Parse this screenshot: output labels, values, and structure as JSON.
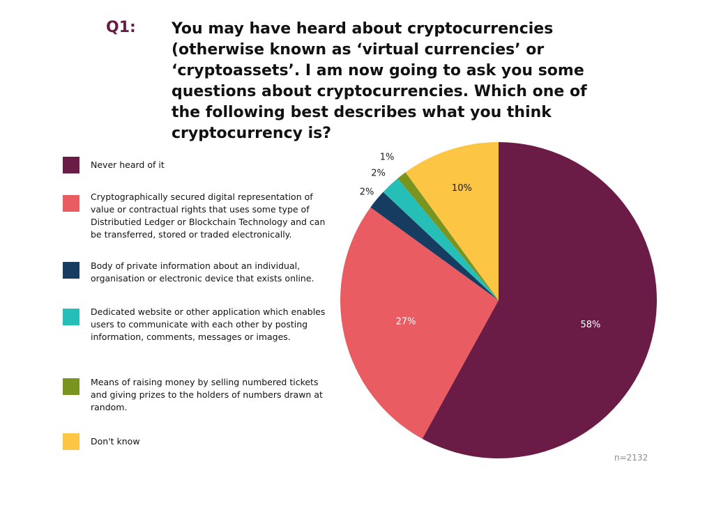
{
  "question": {
    "number": "Q1:",
    "text": "You may have heard about cryptocurrencies (otherwise known as ‘virtual currencies’ or ‘cryptoassets’. I am now going to ask you some questions about cryptocurrencies. Which one of the following best describes what you think cryptocurrency is?"
  },
  "chart_data": {
    "type": "pie",
    "title": "",
    "categories": [
      "Never heard of it",
      "Cryptographically secured digital representation of value or contractual rights that uses some type of Distributied Ledger or Blockchain Technology and can be transferred, stored or traded electronically.",
      "Body of private information about an individual, organisation or electronic device that exists online.",
      "Dedicated website or other application which enables users to communicate with each other by posting information, comments, messages or images.",
      "Means of raising money by selling numbered tickets and giving prizes to the holders of numbers drawn at random.",
      "Don't know"
    ],
    "values": [
      58,
      27,
      2,
      2,
      1,
      10
    ],
    "value_labels": [
      "58%",
      "27%",
      "2%",
      "2%",
      "1%",
      "10%"
    ],
    "colors": [
      "#6b1c46",
      "#e95c61",
      "#173c62",
      "#26bfb8",
      "#79951f",
      "#fcc543"
    ],
    "start_angle": "12 o'clock",
    "direction": "clockwise",
    "legend_position": "left",
    "note": "n=2132"
  }
}
